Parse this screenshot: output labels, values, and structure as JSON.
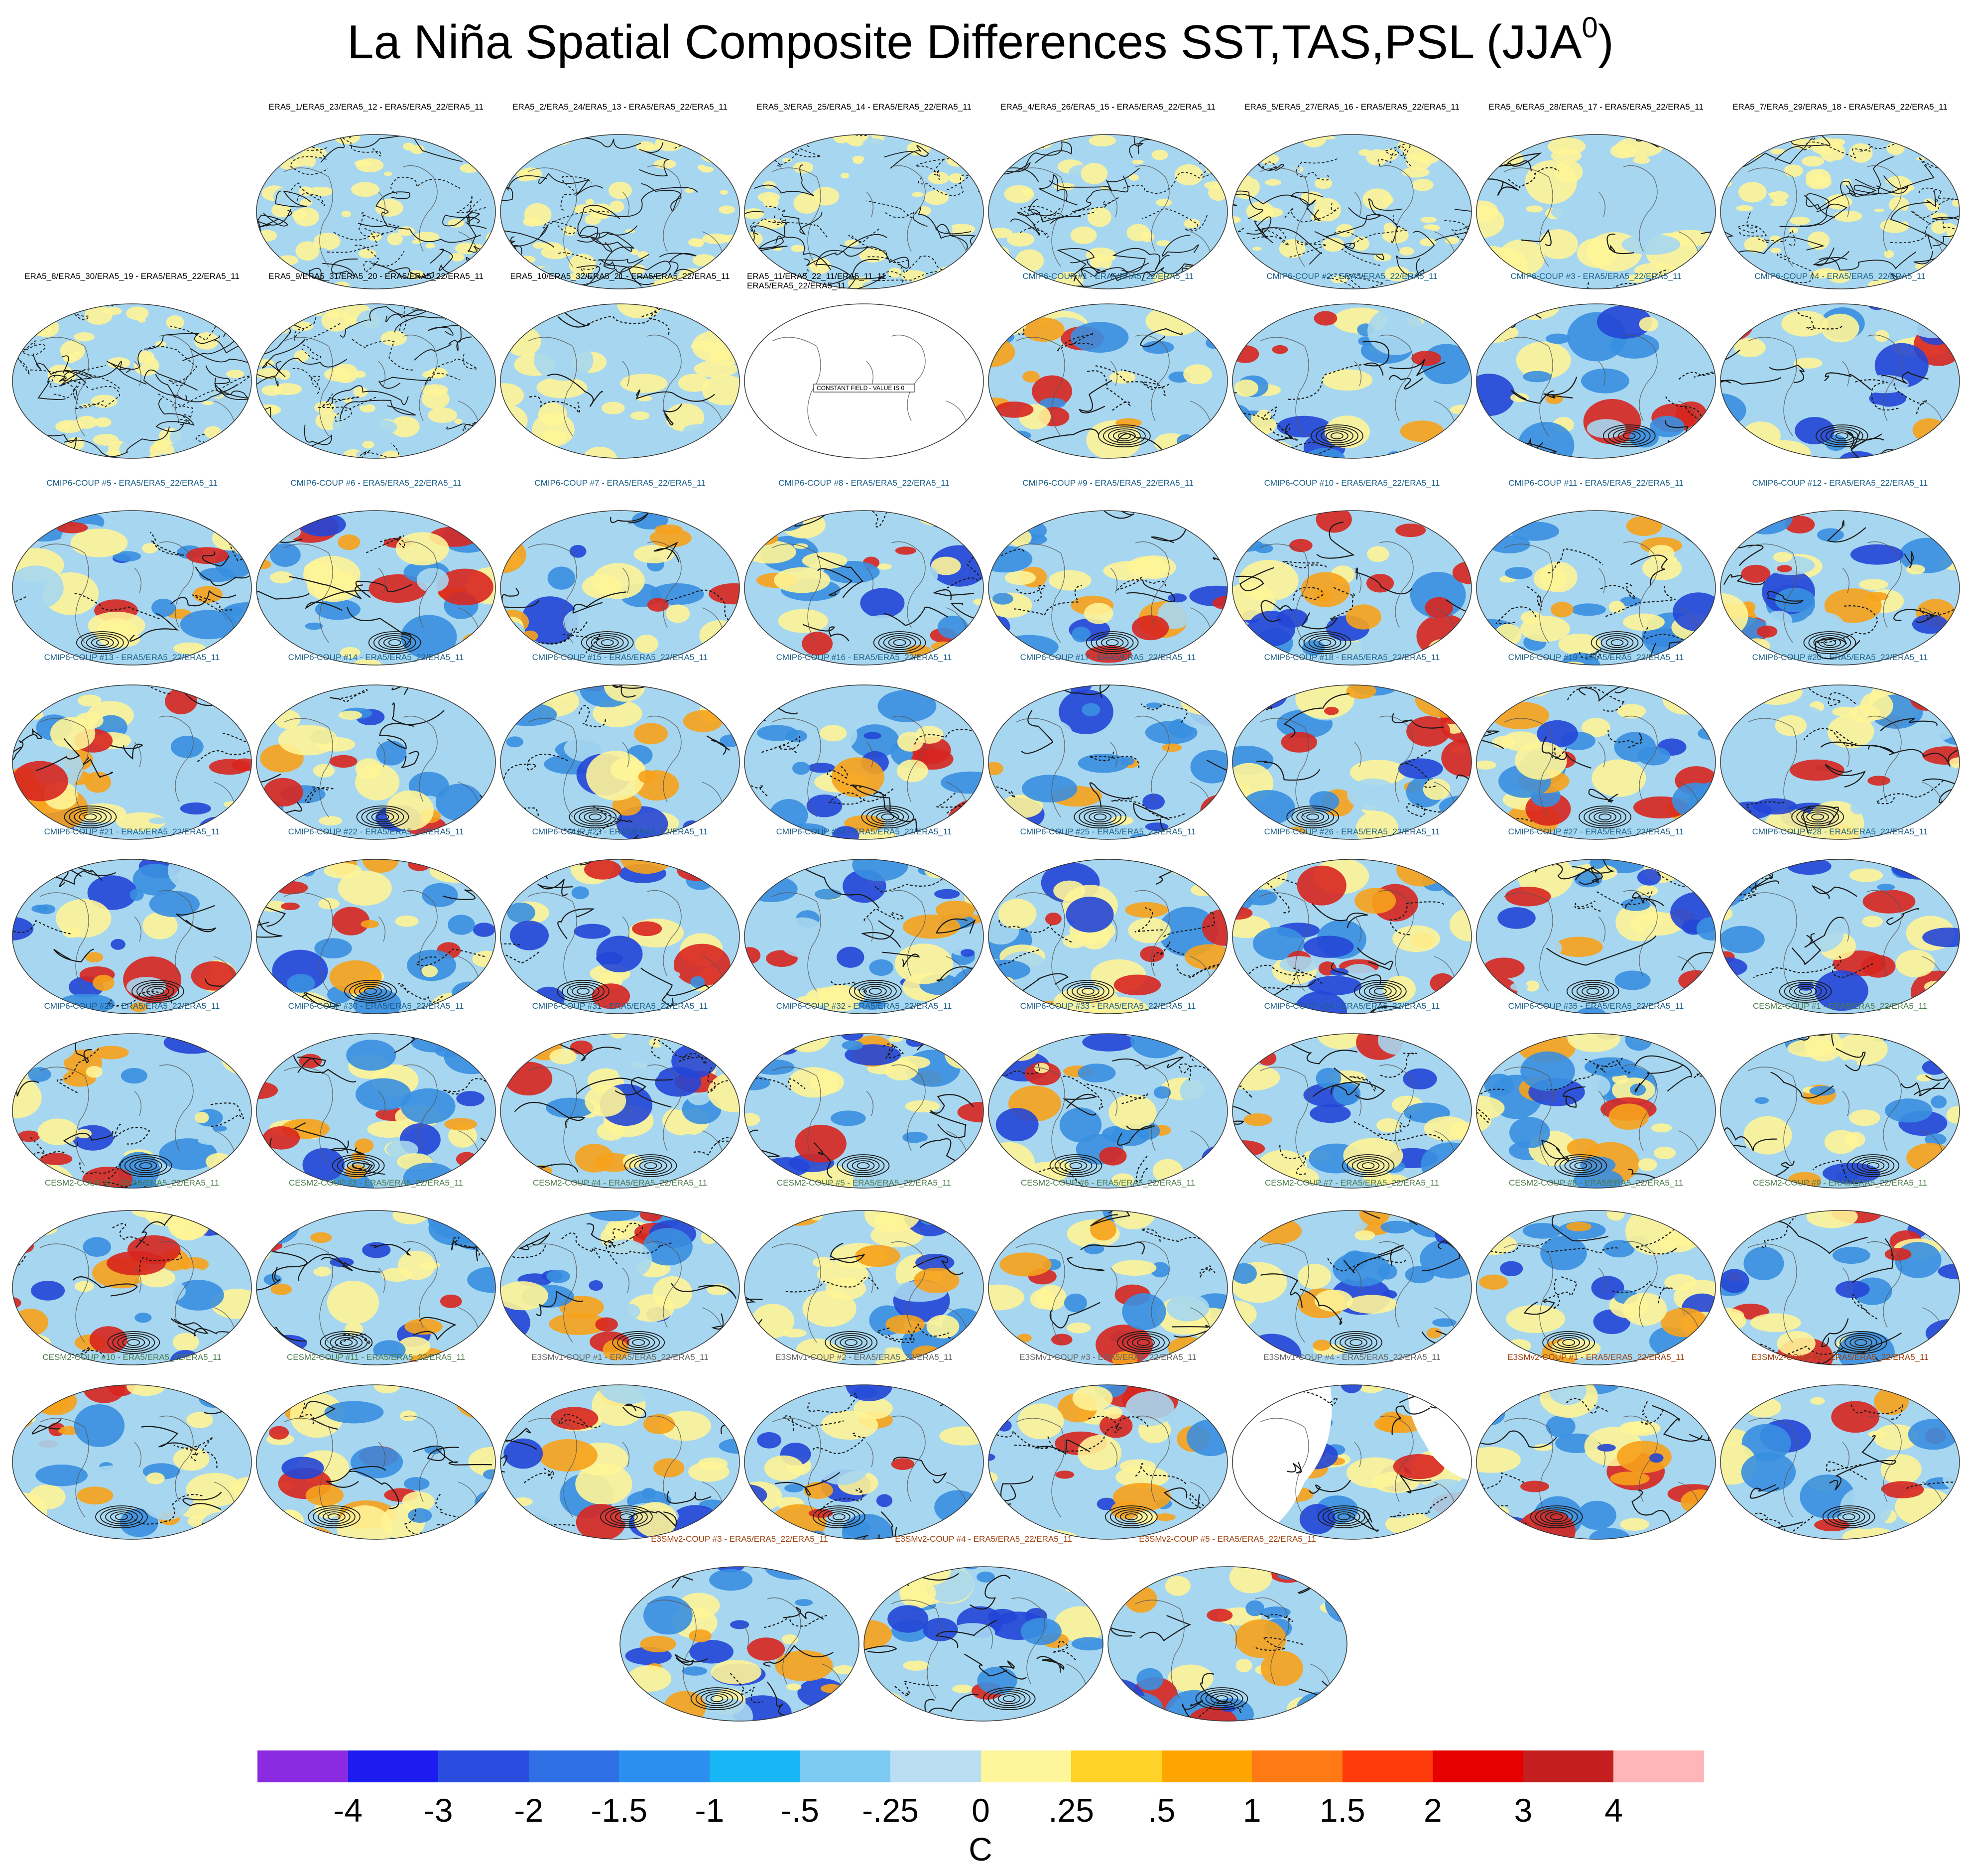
{
  "title": {
    "text": "La Niña Spatial Composite Differences SST,TAS,PSL (JJA",
    "superscript": "0",
    "suffix": ")"
  },
  "palette": {
    "ocean_blue": "#a7d7f0",
    "land_yellow": "#fff497",
    "coast": "#555555",
    "contour": "#1a1a1a",
    "orange": "#f7a21b",
    "red": "#d8261f",
    "blue": "#3a8fe0",
    "deep_blue": "#2446d6"
  },
  "panels": [
    {
      "group": "era5",
      "label": "ERA5_1/ERA5_23/ERA5_12 - ERA5/ERA5_22/ERA5_11",
      "style": "noise"
    },
    {
      "group": "era5",
      "label": "ERA5_2/ERA5_24/ERA5_13 - ERA5/ERA5_22/ERA5_11",
      "style": "noise"
    },
    {
      "group": "era5",
      "label": "ERA5_3/ERA5_25/ERA5_14 - ERA5/ERA5_22/ERA5_11",
      "style": "noise"
    },
    {
      "group": "era5",
      "label": "ERA5_4/ERA5_26/ERA5_15 - ERA5/ERA5_22/ERA5_11",
      "style": "noise"
    },
    {
      "group": "era5",
      "label": "ERA5_5/ERA5_27/ERA5_16 - ERA5/ERA5_22/ERA5_11",
      "style": "noise"
    },
    {
      "group": "era5",
      "label": "ERA5_6/ERA5_28/ERA5_17 - ERA5/ERA5_22/ERA5_11",
      "style": "smooth"
    },
    {
      "group": "era5",
      "label": "ERA5_7/ERA5_29/ERA5_18 - ERA5/ERA5_22/ERA5_11",
      "style": "noise"
    },
    {
      "group": "era5",
      "label": "ERA5_8/ERA5_30/ERA5_19 - ERA5/ERA5_22/ERA5_11",
      "style": "noise"
    },
    {
      "group": "era5",
      "label": "ERA5_9/ERA5_31/ERA5_20 - ERA5/ERA5_22/ERA5_11",
      "style": "noise"
    },
    {
      "group": "era5",
      "label": "ERA5_10/ERA5_32/ERA5_21 - ERA5/ERA5_22/ERA5_11",
      "style": "smooth"
    },
    {
      "group": "era5",
      "label": "ERA5_11/ERA5_22_11/ERA5_11_11 - ERA5/ERA5_22/ERA5_11",
      "style": "constant",
      "note": "CONSTANT FIELD - VALUE IS 0"
    },
    {
      "group": "cmip6",
      "label": "CMIP6-COUP  #1 - ERA5/ERA5_22/ERA5_11",
      "style": "model"
    },
    {
      "group": "cmip6",
      "label": "CMIP6-COUP  #2 - ERA5/ERA5_22/ERA5_11",
      "style": "model"
    },
    {
      "group": "cmip6",
      "label": "CMIP6-COUP  #3 - ERA5/ERA5_22/ERA5_11",
      "style": "model"
    },
    {
      "group": "cmip6",
      "label": "CMIP6-COUP  #4 - ERA5/ERA5_22/ERA5_11",
      "style": "model"
    },
    {
      "group": "cmip6",
      "label": "CMIP6-COUP  #5 - ERA5/ERA5_22/ERA5_11",
      "style": "model"
    },
    {
      "group": "cmip6",
      "label": "CMIP6-COUP  #6 - ERA5/ERA5_22/ERA5_11",
      "style": "model"
    },
    {
      "group": "cmip6",
      "label": "CMIP6-COUP  #7 - ERA5/ERA5_22/ERA5_11",
      "style": "model"
    },
    {
      "group": "cmip6",
      "label": "CMIP6-COUP  #8 - ERA5/ERA5_22/ERA5_11",
      "style": "model"
    },
    {
      "group": "cmip6",
      "label": "CMIP6-COUP  #9 - ERA5/ERA5_22/ERA5_11",
      "style": "model"
    },
    {
      "group": "cmip6",
      "label": "CMIP6-COUP  #10 - ERA5/ERA5_22/ERA5_11",
      "style": "model"
    },
    {
      "group": "cmip6",
      "label": "CMIP6-COUP  #11 - ERA5/ERA5_22/ERA5_11",
      "style": "model"
    },
    {
      "group": "cmip6",
      "label": "CMIP6-COUP  #12 - ERA5/ERA5_22/ERA5_11",
      "style": "model"
    },
    {
      "group": "cmip6",
      "label": "CMIP6-COUP  #13 - ERA5/ERA5_22/ERA5_11",
      "style": "model"
    },
    {
      "group": "cmip6",
      "label": "CMIP6-COUP  #14 - ERA5/ERA5_22/ERA5_11",
      "style": "model"
    },
    {
      "group": "cmip6",
      "label": "CMIP6-COUP  #15 - ERA5/ERA5_22/ERA5_11",
      "style": "model"
    },
    {
      "group": "cmip6",
      "label": "CMIP6-COUP  #16 - ERA5/ERA5_22/ERA5_11",
      "style": "model"
    },
    {
      "group": "cmip6",
      "label": "CMIP6-COUP  #17 - ERA5/ERA5_22/ERA5_11",
      "style": "model"
    },
    {
      "group": "cmip6",
      "label": "CMIP6-COUP  #18 - ERA5/ERA5_22/ERA5_11",
      "style": "model"
    },
    {
      "group": "cmip6",
      "label": "CMIP6-COUP  #19 - ERA5/ERA5_22/ERA5_11",
      "style": "model"
    },
    {
      "group": "cmip6",
      "label": "CMIP6-COUP  #20 - ERA5/ERA5_22/ERA5_11",
      "style": "model"
    },
    {
      "group": "cmip6",
      "label": "CMIP6-COUP  #21 - ERA5/ERA5_22/ERA5_11",
      "style": "model"
    },
    {
      "group": "cmip6",
      "label": "CMIP6-COUP  #22 - ERA5/ERA5_22/ERA5_11",
      "style": "model"
    },
    {
      "group": "cmip6",
      "label": "CMIP6-COUP  #23 - ERA5/ERA5_22/ERA5_11",
      "style": "model"
    },
    {
      "group": "cmip6",
      "label": "CMIP6-COUP  #24 - ERA5/ERA5_22/ERA5_11",
      "style": "model"
    },
    {
      "group": "cmip6",
      "label": "CMIP6-COUP  #25 - ERA5/ERA5_22/ERA5_11",
      "style": "model"
    },
    {
      "group": "cmip6",
      "label": "CMIP6-COUP  #26 - ERA5/ERA5_22/ERA5_11",
      "style": "model"
    },
    {
      "group": "cmip6",
      "label": "CMIP6-COUP  #27 - ERA5/ERA5_22/ERA5_11",
      "style": "model"
    },
    {
      "group": "cmip6",
      "label": "CMIP6-COUP  #28 - ERA5/ERA5_22/ERA5_11",
      "style": "model"
    },
    {
      "group": "cmip6",
      "label": "CMIP6-COUP  #29 - ERA5/ERA5_22/ERA5_11",
      "style": "model"
    },
    {
      "group": "cmip6",
      "label": "CMIP6-COUP  #30 - ERA5/ERA5_22/ERA5_11",
      "style": "model"
    },
    {
      "group": "cmip6",
      "label": "CMIP6-COUP  #31 - ERA5/ERA5_22/ERA5_11",
      "style": "model"
    },
    {
      "group": "cmip6",
      "label": "CMIP6-COUP  #32 - ERA5/ERA5_22/ERA5_11",
      "style": "model"
    },
    {
      "group": "cmip6",
      "label": "CMIP6-COUP  #33 - ERA5/ERA5_22/ERA5_11",
      "style": "model"
    },
    {
      "group": "cmip6",
      "label": "CMIP6-COUP  #34 - ERA5/ERA5_22/ERA5_11",
      "style": "model"
    },
    {
      "group": "cmip6",
      "label": "CMIP6-COUP  #35 - ERA5/ERA5_22/ERA5_11",
      "style": "model"
    },
    {
      "group": "cesm2",
      "label": "CESM2-COUP  #1 - ERA5/ERA5_22/ERA5_11",
      "style": "model"
    },
    {
      "group": "cesm2",
      "label": "CESM2-COUP  #2 - ERA5/ERA5_22/ERA5_11",
      "style": "model"
    },
    {
      "group": "cesm2",
      "label": "CESM2-COUP  #3 - ERA5/ERA5_22/ERA5_11",
      "style": "model"
    },
    {
      "group": "cesm2",
      "label": "CESM2-COUP  #4 - ERA5/ERA5_22/ERA5_11",
      "style": "model"
    },
    {
      "group": "cesm2",
      "label": "CESM2-COUP  #5 - ERA5/ERA5_22/ERA5_11",
      "style": "model"
    },
    {
      "group": "cesm2",
      "label": "CESM2-COUP  #6 - ERA5/ERA5_22/ERA5_11",
      "style": "model"
    },
    {
      "group": "cesm2",
      "label": "CESM2-COUP  #7 - ERA5/ERA5_22/ERA5_11",
      "style": "model"
    },
    {
      "group": "cesm2",
      "label": "CESM2-COUP  #8 - ERA5/ERA5_22/ERA5_11",
      "style": "model"
    },
    {
      "group": "cesm2",
      "label": "CESM2-COUP  #9 - ERA5/ERA5_22/ERA5_11",
      "style": "model"
    },
    {
      "group": "cesm2",
      "label": "CESM2-COUP  #10 - ERA5/ERA5_22/ERA5_11",
      "style": "model"
    },
    {
      "group": "cesm2",
      "label": "CESM2-COUP  #11 - ERA5/ERA5_22/ERA5_11",
      "style": "model"
    },
    {
      "group": "e3smv1",
      "label": "E3SMv1-COUP #1 - ERA5/ERA5_22/ERA5_11",
      "style": "model"
    },
    {
      "group": "e3smv1",
      "label": "E3SMv1-COUP #2 - ERA5/ERA5_22/ERA5_11",
      "style": "model"
    },
    {
      "group": "e3smv1",
      "label": "E3SMv1-COUP #3 - ERA5/ERA5_22/ERA5_11",
      "style": "model"
    },
    {
      "group": "e3smv1",
      "label": "E3SMv1-COUP #4 - ERA5/ERA5_22/ERA5_11",
      "style": "partial"
    },
    {
      "group": "e3smv2",
      "label": "E3SMv2-COUP #1 - ERA5/ERA5_22/ERA5_11",
      "style": "model"
    },
    {
      "group": "e3smv2",
      "label": "E3SMv2-COUP #2 - ERA5/ERA5_22/ERA5_11",
      "style": "model"
    },
    {
      "group": "e3smv2",
      "label": "E3SMv2-COUP #3 - ERA5/ERA5_22/ERA5_11",
      "style": "model"
    },
    {
      "group": "e3smv2",
      "label": "E3SMv2-COUP #4 - ERA5/ERA5_22/ERA5_11",
      "style": "model"
    },
    {
      "group": "e3smv2",
      "label": "E3SMv2-COUP #5 - ERA5/ERA5_22/ERA5_11",
      "style": "model"
    }
  ],
  "colorbar": {
    "colors": [
      "#8a2be2",
      "#1c1cf0",
      "#2a4de0",
      "#2f6fe6",
      "#2b8ff0",
      "#19b6f5",
      "#7cc9f2",
      "#b9def2",
      "#fff59a",
      "#ffd22a",
      "#ffa500",
      "#ff7a14",
      "#ff3a0a",
      "#e60000",
      "#c41e1e",
      "#ffb6b9"
    ],
    "ticks": [
      "-4",
      "-3",
      "-2",
      "-1.5",
      "-1",
      "-.5",
      "-.25",
      "0",
      ".25",
      ".5",
      "1",
      "1.5",
      "2",
      "3",
      "4"
    ],
    "units": "C"
  }
}
